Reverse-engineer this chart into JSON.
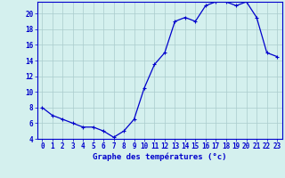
{
  "hours": [
    0,
    1,
    2,
    3,
    4,
    5,
    6,
    7,
    8,
    9,
    10,
    11,
    12,
    13,
    14,
    15,
    16,
    17,
    18,
    19,
    20,
    21,
    22,
    23
  ],
  "temperatures": [
    8,
    7,
    6.5,
    6,
    5.5,
    5.5,
    5,
    4.2,
    5,
    6.5,
    10.5,
    13.5,
    15,
    19,
    19.5,
    19,
    21,
    21.5,
    21.5,
    21,
    21.5,
    19.5,
    15,
    14.5
  ],
  "line_color": "#0000cc",
  "marker": "+",
  "bg_color": "#d4f0ee",
  "grid_color": "#aacccc",
  "xlabel": "Graphe des températures (°c)",
  "ylim": [
    4,
    21
  ],
  "xlim": [
    -0.5,
    23.5
  ],
  "yticks": [
    4,
    6,
    8,
    10,
    12,
    14,
    16,
    18,
    20
  ],
  "xticks": [
    0,
    1,
    2,
    3,
    4,
    5,
    6,
    7,
    8,
    9,
    10,
    11,
    12,
    13,
    14,
    15,
    16,
    17,
    18,
    19,
    20,
    21,
    22,
    23
  ],
  "tick_fontsize": 5.5,
  "xlabel_fontsize": 6.5,
  "markersize": 2.5,
  "linewidth": 0.9
}
